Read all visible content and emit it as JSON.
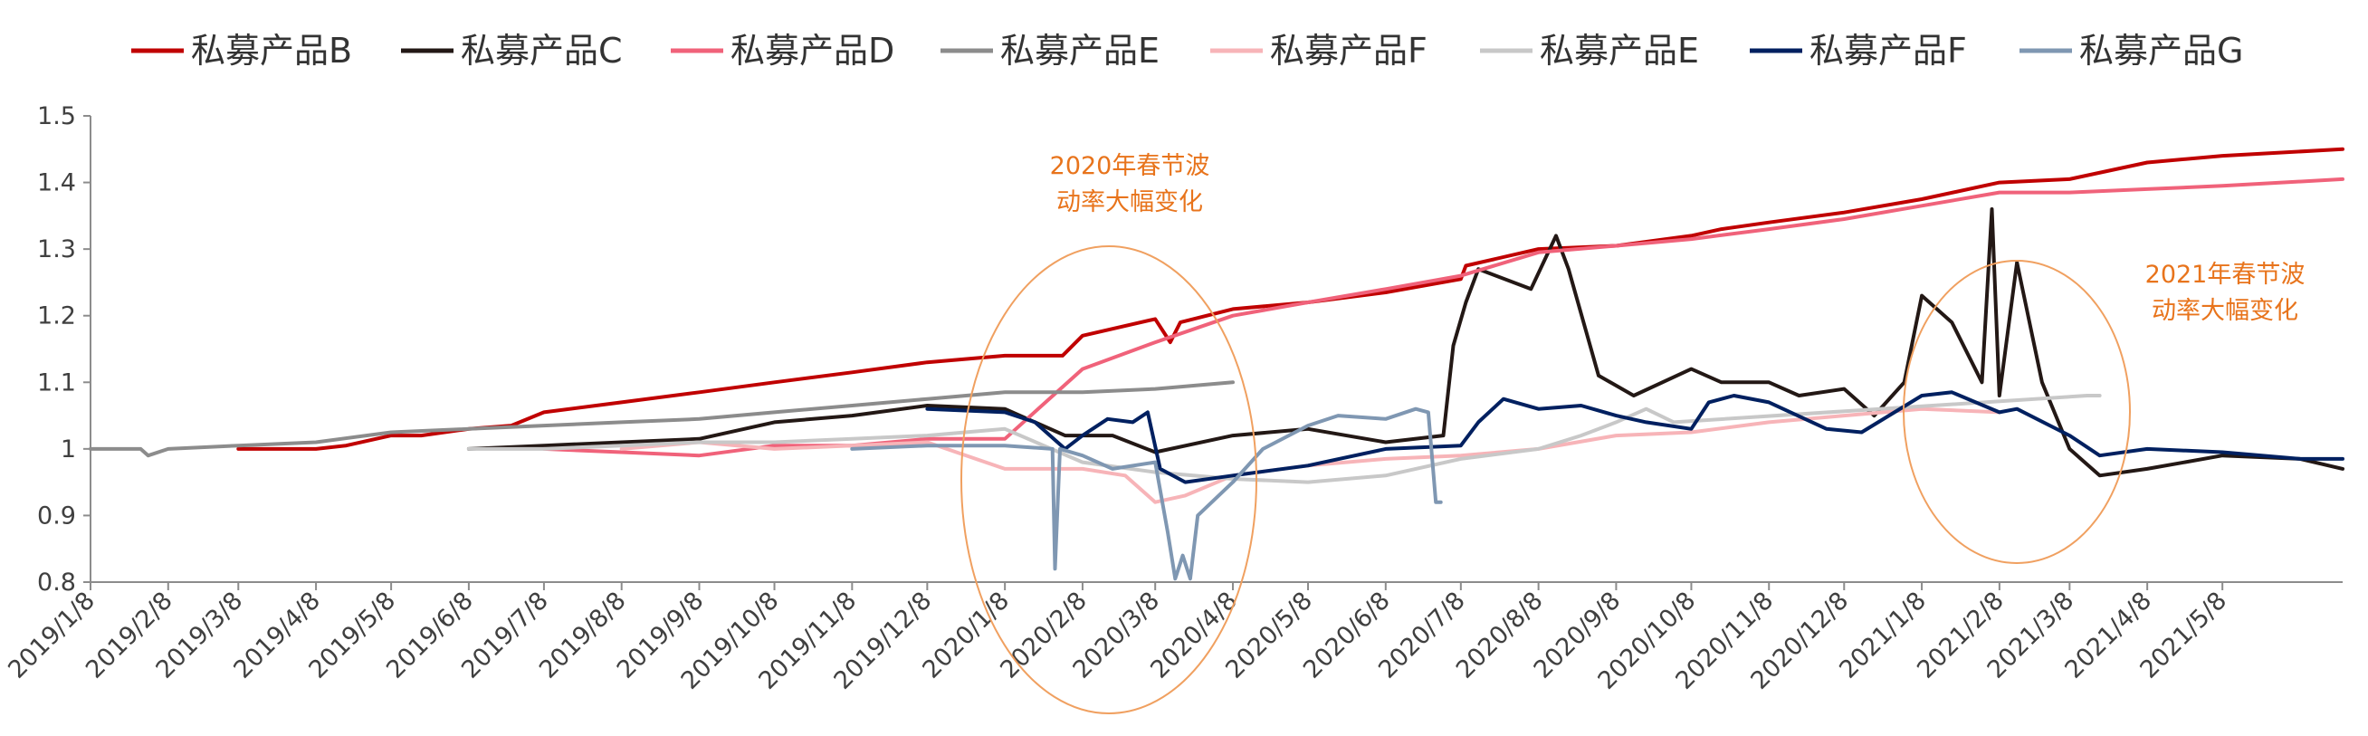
{
  "chart_data": {
    "type": "line",
    "ylim": [
      0.8,
      1.5
    ],
    "yticks": [
      "0.8",
      "0.9",
      "1",
      "1.1",
      "1.2",
      "1.3",
      "1.4",
      "1.5"
    ],
    "x_range": [
      "2019-01-08",
      "2021-06-25"
    ],
    "xticks": [
      {
        "label": "2019/1/8",
        "date": "2019-01-08"
      },
      {
        "label": "2019/2/8",
        "date": "2019-02-08"
      },
      {
        "label": "2019/3/8",
        "date": "2019-03-08"
      },
      {
        "label": "2019/4/8",
        "date": "2019-04-08"
      },
      {
        "label": "2019/5/8",
        "date": "2019-05-08"
      },
      {
        "label": "2019/6/8",
        "date": "2019-06-08"
      },
      {
        "label": "2019/7/8",
        "date": "2019-07-08"
      },
      {
        "label": "2019/8/8",
        "date": "2019-08-08"
      },
      {
        "label": "2019/9/8",
        "date": "2019-09-08"
      },
      {
        "label": "2019/10/8",
        "date": "2019-10-08"
      },
      {
        "label": "2019/11/8",
        "date": "2019-11-08"
      },
      {
        "label": "2019/12/8",
        "date": "2019-12-08"
      },
      {
        "label": "2020/1/8",
        "date": "2020-01-08"
      },
      {
        "label": "2020/2/8",
        "date": "2020-02-08"
      },
      {
        "label": "2020/3/8",
        "date": "2020-03-08"
      },
      {
        "label": "2020/4/8",
        "date": "2020-04-08"
      },
      {
        "label": "2020/5/8",
        "date": "2020-05-08"
      },
      {
        "label": "2020/6/8",
        "date": "2020-06-08"
      },
      {
        "label": "2020/7/8",
        "date": "2020-07-08"
      },
      {
        "label": "2020/8/8",
        "date": "2020-08-08"
      },
      {
        "label": "2020/9/8",
        "date": "2020-09-08"
      },
      {
        "label": "2020/10/8",
        "date": "2020-10-08"
      },
      {
        "label": "2020/11/8",
        "date": "2020-11-08"
      },
      {
        "label": "2020/12/8",
        "date": "2020-12-08"
      },
      {
        "label": "2021/1/8",
        "date": "2021-01-08"
      },
      {
        "label": "2021/2/8",
        "date": "2021-02-08"
      },
      {
        "label": "2021/3/8",
        "date": "2021-03-08"
      },
      {
        "label": "2021/4/8",
        "date": "2021-04-08"
      },
      {
        "label": "2021/5/8",
        "date": "2021-05-08"
      }
    ],
    "legend_position": "top",
    "grid": false,
    "series": [
      {
        "name": "私募产品B",
        "color": "#C00000",
        "points": [
          [
            "2019-03-08",
            1.0
          ],
          [
            "2019-04-08",
            1.0
          ],
          [
            "2019-04-20",
            1.005
          ],
          [
            "2019-05-08",
            1.02
          ],
          [
            "2019-05-20",
            1.02
          ],
          [
            "2019-06-08",
            1.03
          ],
          [
            "2019-06-25",
            1.035
          ],
          [
            "2019-07-08",
            1.055
          ],
          [
            "2019-08-08",
            1.07
          ],
          [
            "2019-09-08",
            1.085
          ],
          [
            "2019-10-08",
            1.1
          ],
          [
            "2019-11-08",
            1.115
          ],
          [
            "2019-12-08",
            1.13
          ],
          [
            "2020-01-08",
            1.14
          ],
          [
            "2020-01-31",
            1.14
          ],
          [
            "2020-02-08",
            1.17
          ],
          [
            "2020-03-08",
            1.195
          ],
          [
            "2020-03-14",
            1.16
          ],
          [
            "2020-03-18",
            1.19
          ],
          [
            "2020-04-08",
            1.21
          ],
          [
            "2020-05-08",
            1.22
          ],
          [
            "2020-06-08",
            1.235
          ],
          [
            "2020-07-08",
            1.255
          ],
          [
            "2020-07-10",
            1.275
          ],
          [
            "2020-08-08",
            1.3
          ],
          [
            "2020-09-08",
            1.305
          ],
          [
            "2020-10-08",
            1.32
          ],
          [
            "2020-10-20",
            1.33
          ],
          [
            "2020-11-08",
            1.34
          ],
          [
            "2020-12-08",
            1.355
          ],
          [
            "2021-01-08",
            1.375
          ],
          [
            "2021-02-08",
            1.4
          ],
          [
            "2021-03-08",
            1.405
          ],
          [
            "2021-04-08",
            1.43
          ],
          [
            "2021-05-08",
            1.44
          ],
          [
            "2021-06-25",
            1.45
          ]
        ]
      },
      {
        "name": "私募产品C",
        "color": "#231815",
        "points": [
          [
            "2019-06-08",
            1.0
          ],
          [
            "2019-07-08",
            1.005
          ],
          [
            "2019-08-08",
            1.01
          ],
          [
            "2019-09-08",
            1.015
          ],
          [
            "2019-10-08",
            1.04
          ],
          [
            "2019-11-08",
            1.05
          ],
          [
            "2019-12-08",
            1.065
          ],
          [
            "2020-01-08",
            1.06
          ],
          [
            "2020-02-01",
            1.02
          ],
          [
            "2020-02-08",
            1.02
          ],
          [
            "2020-02-20",
            1.02
          ],
          [
            "2020-03-08",
            0.995
          ],
          [
            "2020-04-08",
            1.02
          ],
          [
            "2020-05-08",
            1.03
          ],
          [
            "2020-06-08",
            1.01
          ],
          [
            "2020-07-01",
            1.02
          ],
          [
            "2020-07-05",
            1.155
          ],
          [
            "2020-07-10",
            1.22
          ],
          [
            "2020-07-15",
            1.27
          ],
          [
            "2020-08-05",
            1.24
          ],
          [
            "2020-08-15",
            1.32
          ],
          [
            "2020-08-20",
            1.27
          ],
          [
            "2020-09-01",
            1.11
          ],
          [
            "2020-09-15",
            1.08
          ],
          [
            "2020-10-08",
            1.12
          ],
          [
            "2020-10-20",
            1.1
          ],
          [
            "2020-11-08",
            1.1
          ],
          [
            "2020-11-20",
            1.08
          ],
          [
            "2020-12-08",
            1.09
          ],
          [
            "2020-12-20",
            1.05
          ],
          [
            "2021-01-01",
            1.1
          ],
          [
            "2021-01-08",
            1.23
          ],
          [
            "2021-01-20",
            1.19
          ],
          [
            "2021-02-01",
            1.1
          ],
          [
            "2021-02-05",
            1.36
          ],
          [
            "2021-02-08",
            1.08
          ],
          [
            "2021-02-15",
            1.28
          ],
          [
            "2021-02-25",
            1.1
          ],
          [
            "2021-03-08",
            1.0
          ],
          [
            "2021-03-20",
            0.96
          ],
          [
            "2021-04-08",
            0.97
          ],
          [
            "2021-05-08",
            0.99
          ],
          [
            "2021-06-08",
            0.985
          ],
          [
            "2021-06-25",
            0.97
          ]
        ]
      },
      {
        "name": "私募产品D",
        "color": "#F0627A",
        "points": [
          [
            "2019-07-08",
            1.0
          ],
          [
            "2019-08-08",
            0.995
          ],
          [
            "2019-09-08",
            0.99
          ],
          [
            "2019-10-08",
            1.005
          ],
          [
            "2019-11-08",
            1.005
          ],
          [
            "2019-12-08",
            1.015
          ],
          [
            "2020-01-08",
            1.015
          ],
          [
            "2020-02-08",
            1.12
          ],
          [
            "2020-03-08",
            1.16
          ],
          [
            "2020-04-08",
            1.2
          ],
          [
            "2020-05-08",
            1.22
          ],
          [
            "2020-06-08",
            1.24
          ],
          [
            "2020-07-08",
            1.26
          ],
          [
            "2020-08-08",
            1.295
          ],
          [
            "2020-09-08",
            1.305
          ],
          [
            "2020-10-08",
            1.315
          ],
          [
            "2020-11-08",
            1.33
          ],
          [
            "2020-12-08",
            1.345
          ],
          [
            "2021-01-08",
            1.365
          ],
          [
            "2021-02-08",
            1.385
          ],
          [
            "2021-03-08",
            1.385
          ],
          [
            "2021-04-08",
            1.39
          ],
          [
            "2021-05-08",
            1.395
          ],
          [
            "2021-06-25",
            1.405
          ]
        ]
      },
      {
        "name": "私募产品E",
        "color": "#8C8C8C",
        "points": [
          [
            "2019-01-08",
            1.0
          ],
          [
            "2019-01-28",
            1.0
          ],
          [
            "2019-01-31",
            0.99
          ],
          [
            "2019-02-08",
            1.0
          ],
          [
            "2019-03-08",
            1.005
          ],
          [
            "2019-04-08",
            1.01
          ],
          [
            "2019-05-08",
            1.025
          ],
          [
            "2019-06-08",
            1.03
          ],
          [
            "2019-07-08",
            1.035
          ],
          [
            "2019-08-08",
            1.04
          ],
          [
            "2019-09-08",
            1.045
          ],
          [
            "2019-10-08",
            1.055
          ],
          [
            "2019-11-08",
            1.065
          ],
          [
            "2019-12-08",
            1.075
          ],
          [
            "2020-01-08",
            1.085
          ],
          [
            "2020-02-08",
            1.085
          ],
          [
            "2020-03-08",
            1.09
          ],
          [
            "2020-04-08",
            1.1
          ]
        ]
      },
      {
        "name": "私募产品F",
        "color": "#F7B4B8",
        "points": [
          [
            "2019-08-08",
            1.0
          ],
          [
            "2019-09-08",
            1.01
          ],
          [
            "2019-10-08",
            1.0
          ],
          [
            "2019-11-08",
            1.005
          ],
          [
            "2019-12-08",
            1.01
          ],
          [
            "2020-01-08",
            0.97
          ],
          [
            "2020-02-08",
            0.97
          ],
          [
            "2020-02-25",
            0.96
          ],
          [
            "2020-03-08",
            0.92
          ],
          [
            "2020-03-20",
            0.93
          ],
          [
            "2020-04-08",
            0.96
          ],
          [
            "2020-05-08",
            0.975
          ],
          [
            "2020-06-08",
            0.985
          ],
          [
            "2020-07-08",
            0.99
          ],
          [
            "2020-08-08",
            1.0
          ],
          [
            "2020-09-08",
            1.02
          ],
          [
            "2020-10-08",
            1.025
          ],
          [
            "2020-11-08",
            1.04
          ],
          [
            "2020-12-08",
            1.05
          ],
          [
            "2021-01-08",
            1.06
          ],
          [
            "2021-02-08",
            1.055
          ]
        ]
      },
      {
        "name": "私募产品E",
        "color": "#C8C8C8",
        "points": [
          [
            "2019-06-08",
            1.0
          ],
          [
            "2019-07-08",
            1.0
          ],
          [
            "2019-08-08",
            1.005
          ],
          [
            "2019-09-08",
            1.01
          ],
          [
            "2019-10-08",
            1.01
          ],
          [
            "2019-11-08",
            1.015
          ],
          [
            "2019-12-08",
            1.02
          ],
          [
            "2020-01-08",
            1.03
          ],
          [
            "2020-02-08",
            0.98
          ],
          [
            "2020-03-08",
            0.965
          ],
          [
            "2020-04-08",
            0.955
          ],
          [
            "2020-05-08",
            0.95
          ],
          [
            "2020-06-08",
            0.96
          ],
          [
            "2020-07-08",
            0.985
          ],
          [
            "2020-08-08",
            1.0
          ],
          [
            "2020-08-25",
            1.02
          ],
          [
            "2020-09-08",
            1.04
          ],
          [
            "2020-09-20",
            1.06
          ],
          [
            "2020-10-01",
            1.04
          ],
          [
            "2021-03-15",
            1.08
          ],
          [
            "2021-03-20",
            1.08
          ]
        ]
      },
      {
        "name": "私募产品F",
        "color": "#002060",
        "points": [
          [
            "2019-12-08",
            1.06
          ],
          [
            "2020-01-08",
            1.055
          ],
          [
            "2020-01-20",
            1.04
          ],
          [
            "2020-02-01",
            1.0
          ],
          [
            "2020-02-08",
            1.02
          ],
          [
            "2020-02-18",
            1.045
          ],
          [
            "2020-02-28",
            1.04
          ],
          [
            "2020-03-05",
            1.055
          ],
          [
            "2020-03-10",
            0.97
          ],
          [
            "2020-03-20",
            0.95
          ],
          [
            "2020-04-08",
            0.96
          ],
          [
            "2020-05-08",
            0.975
          ],
          [
            "2020-06-08",
            1.0
          ],
          [
            "2020-07-08",
            1.005
          ],
          [
            "2020-07-15",
            1.04
          ],
          [
            "2020-07-25",
            1.075
          ],
          [
            "2020-08-08",
            1.06
          ],
          [
            "2020-08-25",
            1.065
          ],
          [
            "2020-09-08",
            1.05
          ],
          [
            "2020-09-20",
            1.04
          ],
          [
            "2020-10-08",
            1.03
          ],
          [
            "2020-10-15",
            1.07
          ],
          [
            "2020-10-25",
            1.08
          ],
          [
            "2020-11-08",
            1.07
          ],
          [
            "2020-12-01",
            1.03
          ],
          [
            "2020-12-15",
            1.025
          ],
          [
            "2021-01-08",
            1.08
          ],
          [
            "2021-01-20",
            1.085
          ],
          [
            "2021-02-08",
            1.055
          ],
          [
            "2021-02-15",
            1.06
          ],
          [
            "2021-03-08",
            1.02
          ],
          [
            "2021-03-20",
            0.99
          ],
          [
            "2021-04-08",
            1.0
          ],
          [
            "2021-05-08",
            0.995
          ],
          [
            "2021-06-08",
            0.985
          ],
          [
            "2021-06-25",
            0.985
          ]
        ]
      },
      {
        "name": "私募产品G",
        "color": "#7F97B2",
        "points": [
          [
            "2019-11-08",
            1.0
          ],
          [
            "2019-12-08",
            1.005
          ],
          [
            "2020-01-08",
            1.005
          ],
          [
            "2020-01-27",
            1.0
          ],
          [
            "2020-01-28",
            0.82
          ],
          [
            "2020-01-30",
            1.0
          ],
          [
            "2020-02-08",
            0.99
          ],
          [
            "2020-02-20",
            0.97
          ],
          [
            "2020-03-08",
            0.98
          ],
          [
            "2020-03-13",
            0.875
          ],
          [
            "2020-03-16",
            0.805
          ],
          [
            "2020-03-19",
            0.84
          ],
          [
            "2020-03-22",
            0.805
          ],
          [
            "2020-03-25",
            0.9
          ],
          [
            "2020-04-08",
            0.95
          ],
          [
            "2020-04-20",
            1.0
          ],
          [
            "2020-05-08",
            1.035
          ],
          [
            "2020-05-20",
            1.05
          ],
          [
            "2020-06-08",
            1.045
          ],
          [
            "2020-06-20",
            1.06
          ],
          [
            "2020-06-25",
            1.055
          ],
          [
            "2020-06-28",
            0.92
          ],
          [
            "2020-06-30",
            0.92
          ]
        ]
      }
    ],
    "annotations": [
      {
        "text_lines": [
          "2020年春节波",
          "动率大幅变化"
        ],
        "near": "2020-02"
      },
      {
        "text_lines": [
          "2021年春节波",
          "动率大幅变化"
        ],
        "near": "2021-02"
      }
    ]
  }
}
